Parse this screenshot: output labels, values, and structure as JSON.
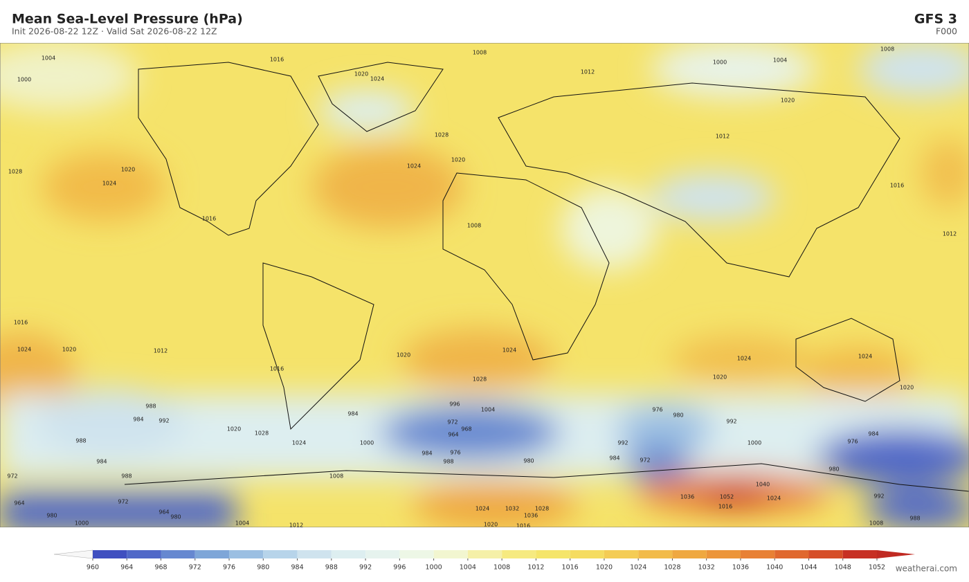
{
  "header": {
    "title": "Mean Sea-Level Pressure  (hPa)",
    "subtitle": "Init 2026-08-22 12Z  ·  Valid Sat 2026-08-22 12Z",
    "model": "GFS  3",
    "forecast_hour": "F000"
  },
  "colorbar": {
    "ticks": [
      960,
      964,
      968,
      972,
      976,
      980,
      984,
      988,
      992,
      996,
      1000,
      1004,
      1008,
      1012,
      1016,
      1020,
      1024,
      1028,
      1032,
      1036,
      1040,
      1044,
      1048,
      1052
    ],
    "colors": [
      "#3f4fc0",
      "#5068c8",
      "#6688d0",
      "#7ea6d8",
      "#9bbfe2",
      "#b7d4ea",
      "#cfe3ee",
      "#ddeef0",
      "#e6f3ee",
      "#edf7e6",
      "#f2f6d0",
      "#f5f0a8",
      "#f6ea80",
      "#f5e56a",
      "#f5dc60",
      "#f4cc55",
      "#f2bb4a",
      "#efa840",
      "#ec953a",
      "#e88034",
      "#e0682e",
      "#d64e28",
      "#c73024"
    ],
    "under_color": "#f7f7f7",
    "over_color": "#c02a22"
  },
  "contour_labels": [
    "1004",
    "1000",
    "1016",
    "1020",
    "1024",
    "1008",
    "1012",
    "1000",
    "1004",
    "1008",
    "1020",
    "1012",
    "1024",
    "1028",
    "1020",
    "1028",
    "1024",
    "1020",
    "1016",
    "1008",
    "1016",
    "1012",
    "1016",
    "1024",
    "1020",
    "1012",
    "1016",
    "1020",
    "1024",
    "1028",
    "1024",
    "1020",
    "1024",
    "1020",
    "988",
    "992",
    "984",
    "988",
    "984",
    "1020",
    "1028",
    "1024",
    "996",
    "1004",
    "984",
    "972",
    "968",
    "964",
    "1000",
    "984",
    "976",
    "980",
    "988",
    "976",
    "980",
    "992",
    "1000",
    "992",
    "984",
    "972",
    "980",
    "984",
    "976",
    "988",
    "972",
    "964",
    "980",
    "972",
    "964",
    "980",
    "1008",
    "1024",
    "1032",
    "1036",
    "1028",
    "1020",
    "1016",
    "1036",
    "1052",
    "1040",
    "1024",
    "1016",
    "992",
    "988",
    "1000",
    "1004",
    "1012",
    "1008"
  ],
  "footer": {
    "credit": "weatherai.com"
  }
}
